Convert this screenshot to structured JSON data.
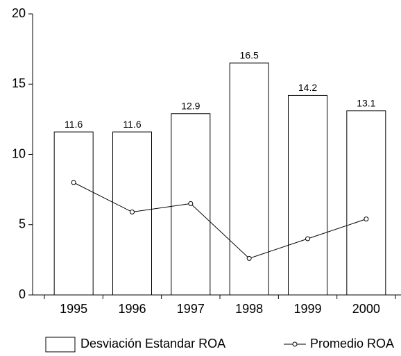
{
  "chart_data": {
    "type": "bar-line",
    "categories": [
      "1995",
      "1996",
      "1997",
      "1998",
      "1999",
      "2000"
    ],
    "series": [
      {
        "name": "Desviación Estandar ROA",
        "type": "bar",
        "color": "#ffffff",
        "values": [
          11.6,
          11.6,
          12.9,
          16.5,
          14.2,
          13.1
        ]
      },
      {
        "name": "Promedio ROA",
        "type": "line",
        "color": "#000000",
        "values": [
          8.0,
          5.9,
          6.5,
          2.6,
          4.0,
          5.4
        ]
      }
    ],
    "ylim": [
      0,
      20
    ],
    "yticks": [
      0,
      5,
      10,
      15,
      20
    ],
    "legend": "bottom"
  }
}
